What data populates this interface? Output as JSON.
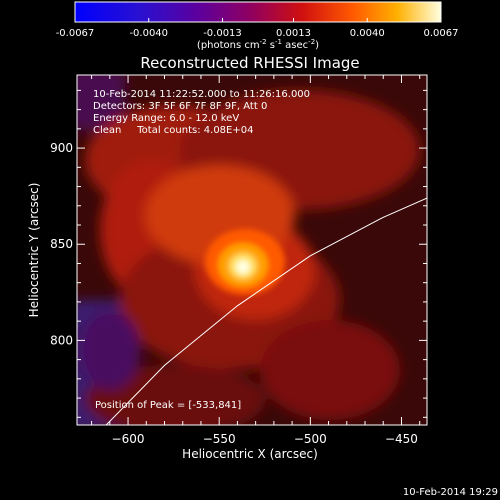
{
  "chart_data": {
    "type": "heatmap",
    "title": "Reconstructed RHESSI Image",
    "colorbar": {
      "ticks": [
        "-0.0067",
        "-0.0040",
        "-0.0013",
        "0.0013",
        "0.0040",
        "0.0067"
      ],
      "range": [
        -0.0067,
        0.0067
      ],
      "label_prefix": "(photons cm",
      "label_sup1": "-2",
      "label_mid1": " s",
      "label_sup2": "-1",
      "label_mid2": " asec",
      "label_sup3": "-2",
      "label_suffix": ")"
    },
    "xlabel": "Heliocentric X (arcsec)",
    "ylabel": "Heliocentric Y (arcsec)",
    "xlim": [
      -628,
      -436
    ],
    "ylim": [
      756,
      938
    ],
    "xticks": [
      -600,
      -550,
      -500,
      -450
    ],
    "yticks": [
      800,
      850,
      900
    ],
    "info_lines": [
      "10-Feb-2014 11:22:52.000 to 11:26:16.000",
      "Detectors: 3F 5F 6F 7F 8F 9F, Att 0",
      "Energy Range: 6.0 - 12.0 keV",
      "Clean     Total counts: 4.08E+04"
    ],
    "peak_label": "Position of Peak = [-533,841]",
    "peak": [
      -533,
      841
    ],
    "limb_line": [
      [
        -612,
        756
      ],
      [
        -580,
        787
      ],
      [
        -540,
        818
      ],
      [
        -500,
        844
      ],
      [
        -460,
        864
      ],
      [
        -436,
        874
      ]
    ],
    "colormap": "red-temperature"
  },
  "footer": {
    "timestamp": "10-Feb-2014 19:29"
  }
}
